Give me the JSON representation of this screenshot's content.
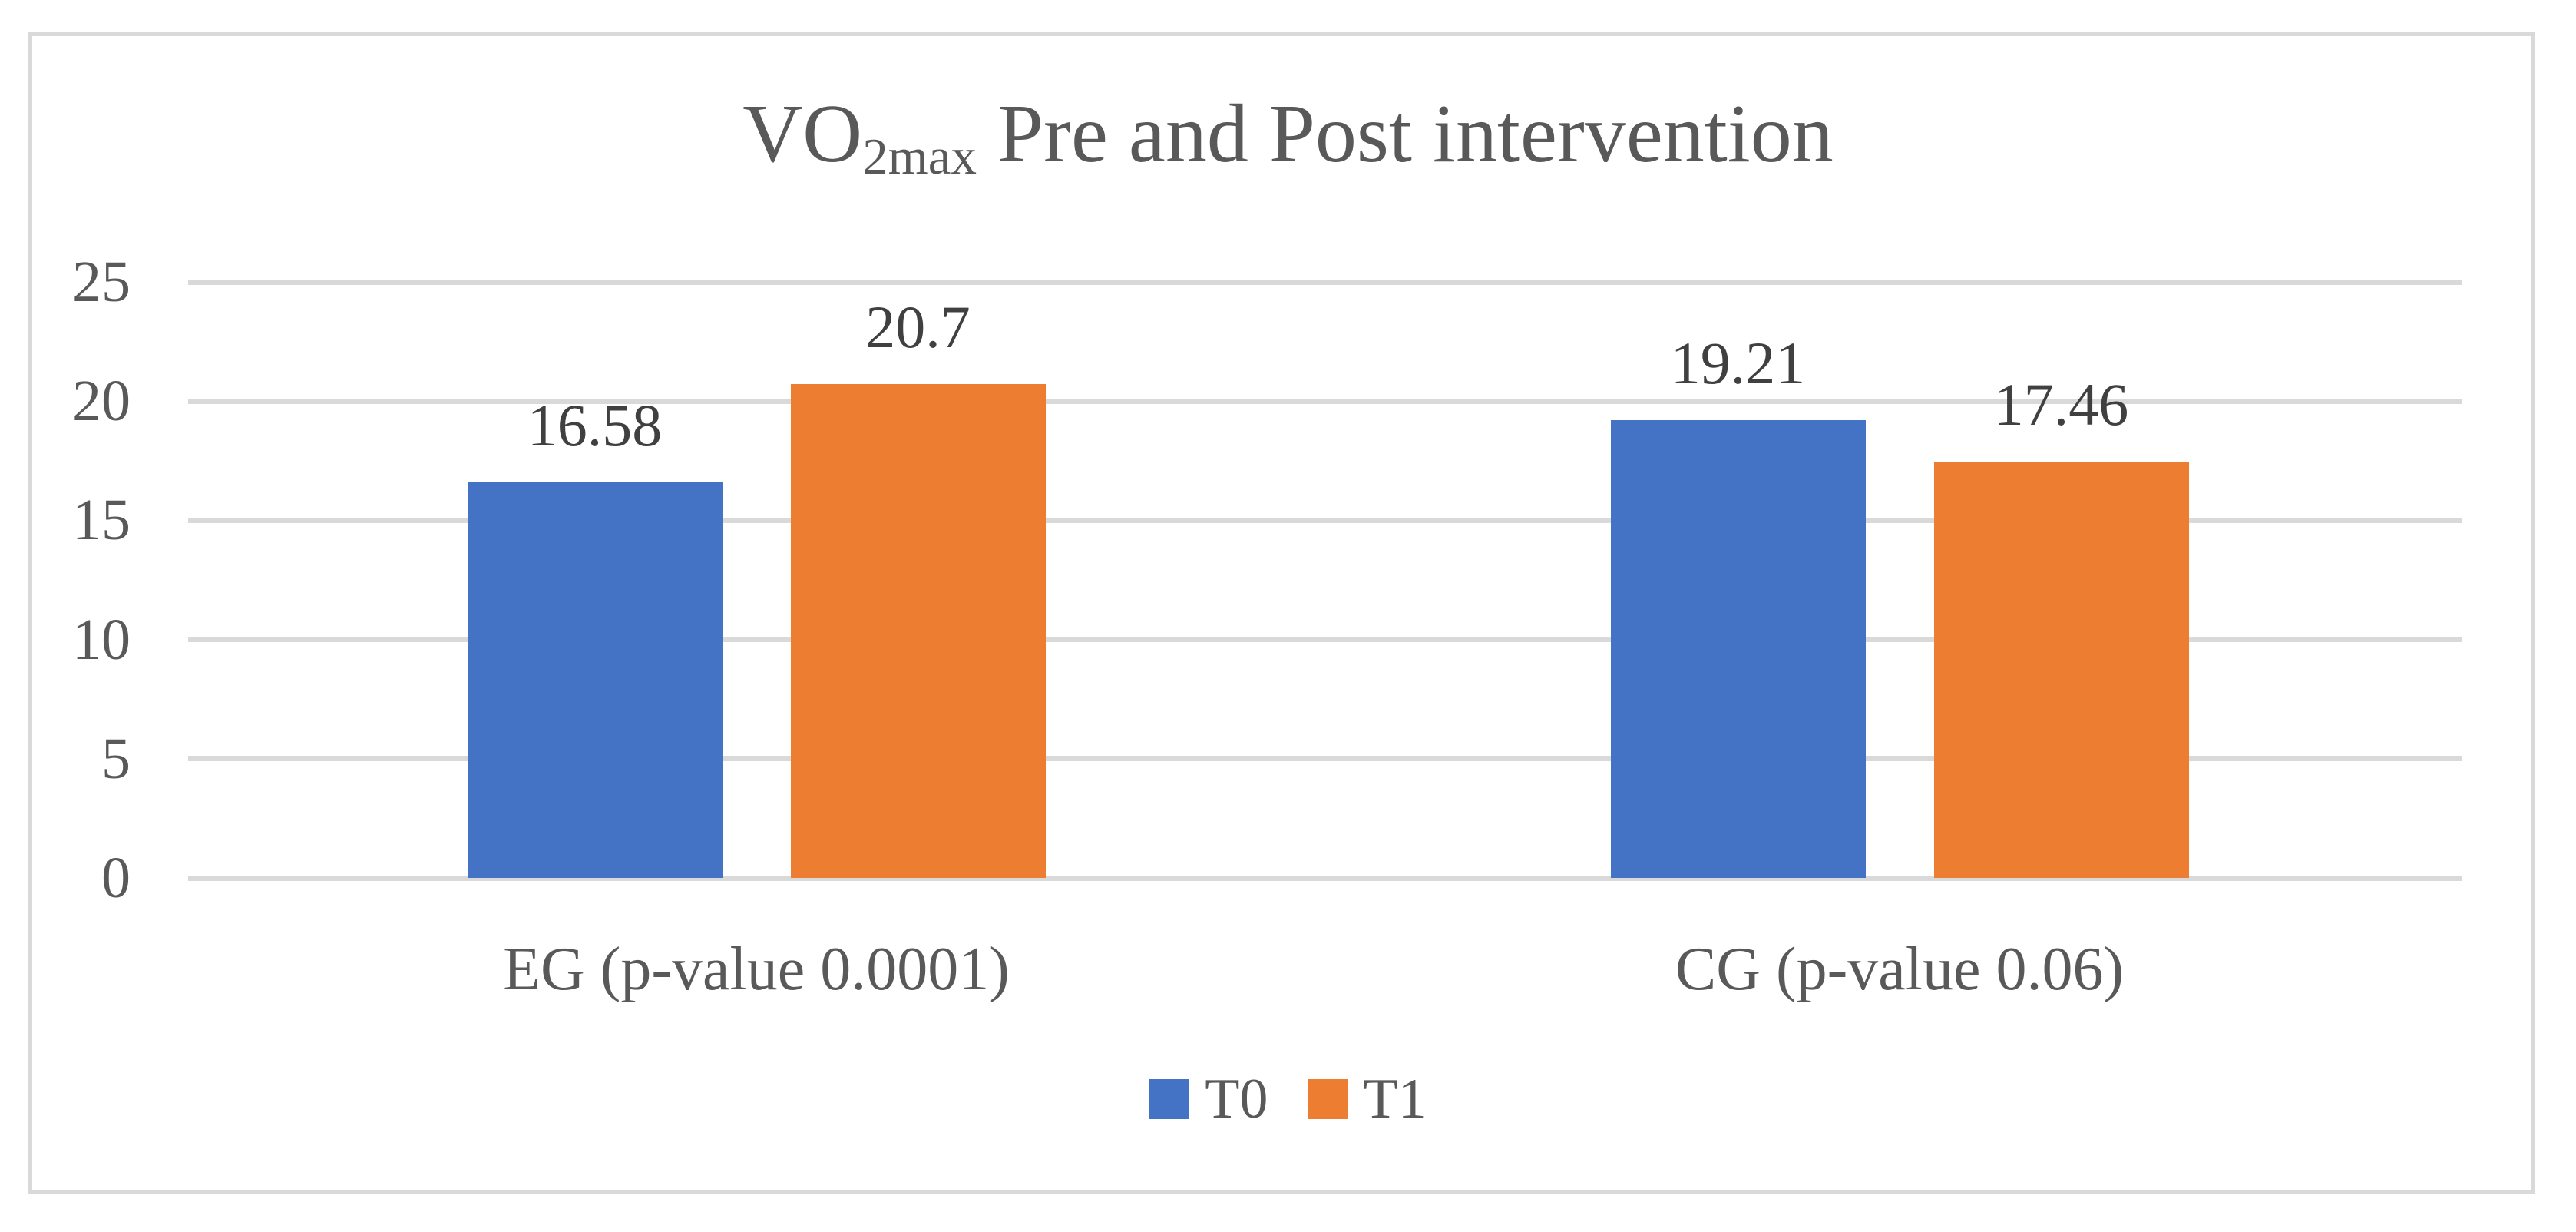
{
  "title": {
    "prefix": "VO",
    "subscript": "2max",
    "rest": " Pre and Post intervention"
  },
  "colors": {
    "t0_bar": "#4472C4",
    "t1_bar": "#ED7D31",
    "gridline": "#D9D9D9",
    "frame_border": "#D9D9D9",
    "title_text": "#595959",
    "axis_text": "#595959",
    "data_label_text": "#404040"
  },
  "chart_data": {
    "type": "bar",
    "title": "VO2max Pre and Post intervention",
    "categories": [
      "EG (p-value 0.0001)",
      "CG (p-value 0.06)"
    ],
    "series": [
      {
        "name": "T0",
        "values": [
          16.58,
          19.21
        ],
        "labels": [
          "16.58",
          "19.21"
        ],
        "color_key": "t0_bar"
      },
      {
        "name": "T1",
        "values": [
          20.7,
          17.46
        ],
        "labels": [
          "20.7",
          "17.46"
        ],
        "color_key": "t1_bar"
      }
    ],
    "xlabel": "",
    "ylabel": "",
    "ylim": [
      0,
      25
    ],
    "y_ticks": [
      0,
      5,
      10,
      15,
      20,
      25
    ],
    "y_tick_labels": [
      "0",
      "5",
      "10",
      "15",
      "20",
      "25"
    ],
    "grid": "horizontal",
    "legend_position": "bottom",
    "legend": [
      "T0",
      "T1"
    ]
  }
}
